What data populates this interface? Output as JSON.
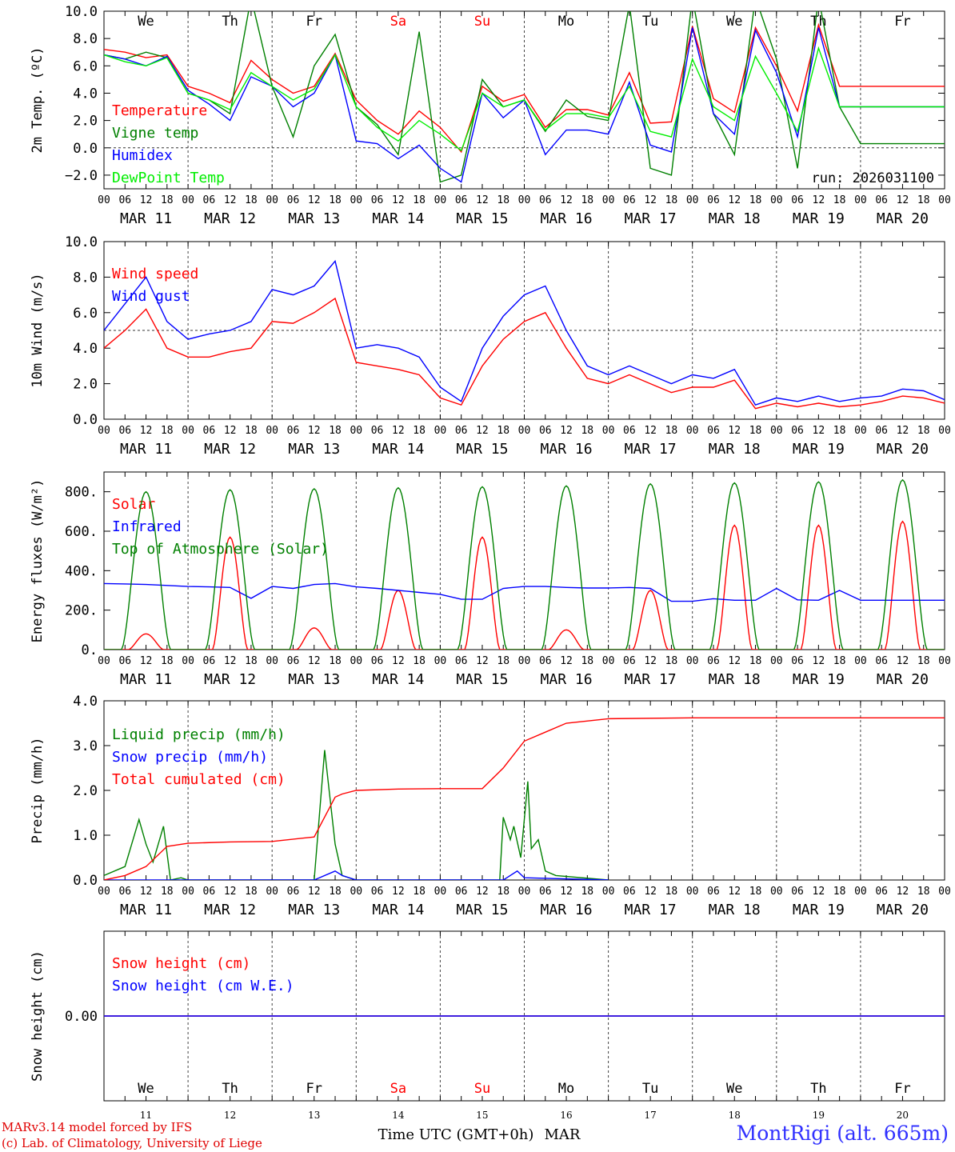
{
  "meta": {
    "run_label": "run: 2026031100",
    "credit_line1": "MARv3.14 model forced by IFS",
    "credit_line2": "(c) Lab. of Climatology, University of Liege",
    "station": "MontRigi (alt. 665m)",
    "time_axis_title": "Time UTC (GMT+0h)",
    "month": "MAR"
  },
  "days": [
    {
      "weekday": "We",
      "date": "MAR 11",
      "num": "11",
      "weekend": false
    },
    {
      "weekday": "Th",
      "date": "MAR 12",
      "num": "12",
      "weekend": false
    },
    {
      "weekday": "Fr",
      "date": "MAR 13",
      "num": "13",
      "weekend": false
    },
    {
      "weekday": "Sa",
      "date": "MAR 14",
      "num": "14",
      "weekend": true
    },
    {
      "weekday": "Su",
      "date": "MAR 15",
      "num": "15",
      "weekend": true
    },
    {
      "weekday": "Mo",
      "date": "MAR 16",
      "num": "16",
      "weekend": false
    },
    {
      "weekday": "Tu",
      "date": "MAR 17",
      "num": "17",
      "weekend": false
    },
    {
      "weekday": "We",
      "date": "MAR 18",
      "num": "18",
      "weekend": false
    },
    {
      "weekday": "Th",
      "date": "MAR 19",
      "num": "19",
      "weekend": false
    },
    {
      "weekday": "Fr",
      "date": "MAR 20",
      "num": "20",
      "weekend": false
    }
  ],
  "hour_ticks": [
    "00",
    "06",
    "12",
    "18"
  ],
  "colors": {
    "red": "#ff0000",
    "green": "#008000",
    "blue": "#0000ff",
    "lightgreen": "#00ee00",
    "weekend": "#ff0000",
    "axis": "#000000"
  },
  "chart_data": [
    {
      "id": "temp",
      "type": "line",
      "ylabel": "2m Temp. (ºC)",
      "ylim": [
        -3,
        10
      ],
      "yticks": [
        -2,
        0,
        2,
        4,
        6,
        8,
        10
      ],
      "ytick_labels": [
        "−2.0",
        "0.0",
        "2.0",
        "4.0",
        "6.0",
        "8.0",
        "10.0"
      ],
      "ref_line": 0,
      "show_weekdays": true,
      "x_unit": "hours since MAR 11 00 UTC",
      "series": [
        {
          "name": "Temperature",
          "color": "red",
          "x": [
            0,
            6,
            12,
            18,
            24,
            30,
            36,
            42,
            48,
            54,
            60,
            66,
            72,
            78,
            84,
            90,
            96,
            102,
            108,
            114,
            120,
            126,
            132,
            138,
            144,
            150,
            156,
            162,
            168,
            174,
            180,
            186,
            192,
            198,
            204,
            210,
            216,
            222,
            228,
            234,
            240
          ],
          "y": [
            7.2,
            7.0,
            6.6,
            6.8,
            4.5,
            4.0,
            3.3,
            6.4,
            5.0,
            4.0,
            4.5,
            6.9,
            3.5,
            2.0,
            1.0,
            2.7,
            1.5,
            -0.3,
            4.5,
            3.4,
            3.9,
            1.5,
            2.8,
            2.8,
            2.4,
            5.5,
            1.8,
            1.9,
            8.9,
            3.6,
            2.6,
            8.8,
            6.0,
            2.7,
            9.0,
            4.5,
            4.5,
            4.5,
            4.5,
            4.5,
            4.5
          ]
        },
        {
          "name": "Vigne temp",
          "color": "green",
          "x": [
            0,
            6,
            12,
            18,
            24,
            30,
            36,
            42,
            48,
            54,
            60,
            66,
            72,
            78,
            84,
            90,
            96,
            102,
            108,
            114,
            120,
            126,
            132,
            138,
            144,
            150,
            156,
            162,
            168,
            174,
            180,
            186,
            192,
            198,
            204,
            210,
            216,
            222,
            228,
            234,
            240
          ],
          "y": [
            6.8,
            6.5,
            7.0,
            6.6,
            4.0,
            3.5,
            2.5,
            11,
            4.5,
            0.8,
            6.0,
            8.3,
            3.0,
            1.7,
            -0.5,
            8.5,
            -2.5,
            -2.0,
            5.0,
            3.0,
            3.5,
            1.2,
            3.5,
            2.3,
            2.0,
            10.5,
            -1.5,
            -2.0,
            11,
            2.5,
            -0.5,
            11,
            6.5,
            -1.5,
            11,
            3.0,
            0.3,
            0.3,
            0.3,
            0.3,
            0.3
          ]
        },
        {
          "name": "Humidex",
          "color": "blue",
          "x": [
            0,
            6,
            12,
            18,
            24,
            30,
            36,
            42,
            48,
            54,
            60,
            66,
            72,
            78,
            84,
            90,
            96,
            102,
            108,
            114,
            120,
            126,
            132,
            138,
            144,
            150,
            156,
            162,
            168,
            174,
            180,
            186,
            192,
            198,
            204,
            210,
            216,
            222,
            228,
            234,
            240
          ],
          "y": [
            6.8,
            6.5,
            6.0,
            6.7,
            4.2,
            3.2,
            2.0,
            5.2,
            4.5,
            3.0,
            4.0,
            6.8,
            0.5,
            0.3,
            -0.8,
            0.2,
            -1.5,
            -2.5,
            4.0,
            2.2,
            3.5,
            -0.5,
            1.3,
            1.3,
            1.0,
            4.8,
            0.2,
            -0.3,
            8.8,
            2.5,
            1.0,
            8.6,
            5.5,
            0.8,
            8.8,
            3.0,
            3.0,
            3.0,
            3.0,
            3.0,
            3.0
          ]
        },
        {
          "name": "DewPoint Temp",
          "color": "lightgreen",
          "x": [
            0,
            6,
            12,
            18,
            24,
            30,
            36,
            42,
            48,
            54,
            60,
            66,
            72,
            78,
            84,
            90,
            96,
            102,
            108,
            114,
            120,
            126,
            132,
            138,
            144,
            150,
            156,
            162,
            168,
            174,
            180,
            186,
            192,
            198,
            204,
            210,
            216,
            222,
            228,
            234,
            240
          ],
          "y": [
            6.8,
            6.3,
            6.0,
            6.6,
            4.0,
            3.5,
            2.8,
            5.5,
            4.5,
            3.5,
            4.3,
            6.8,
            3.0,
            1.5,
            0.5,
            2.0,
            1.0,
            -0.2,
            4.0,
            3.0,
            3.5,
            1.3,
            2.5,
            2.5,
            2.2,
            4.5,
            1.2,
            0.8,
            6.5,
            3.0,
            2.0,
            6.7,
            4.0,
            1.2,
            7.3,
            3.0,
            3.0,
            3.0,
            3.0,
            3.0,
            3.0
          ]
        }
      ]
    },
    {
      "id": "wind",
      "type": "line",
      "ylabel": "10m Wind (m/s)",
      "ylim": [
        0,
        10
      ],
      "yticks": [
        0,
        2,
        4,
        6,
        8,
        10
      ],
      "ytick_labels": [
        "0.0",
        "2.0",
        "4.0",
        "6.0",
        "8.0",
        "10.0"
      ],
      "ref_line": 5,
      "show_weekdays": false,
      "series": [
        {
          "name": "Wind speed",
          "color": "red",
          "x": [
            0,
            6,
            12,
            18,
            24,
            30,
            36,
            42,
            48,
            54,
            60,
            66,
            72,
            78,
            84,
            90,
            96,
            102,
            108,
            114,
            120,
            126,
            132,
            138,
            144,
            150,
            156,
            162,
            168,
            174,
            180,
            186,
            192,
            198,
            204,
            210,
            216,
            222,
            228,
            234,
            240
          ],
          "y": [
            4.0,
            5.0,
            6.2,
            4.0,
            3.5,
            3.5,
            3.8,
            4.0,
            5.5,
            5.4,
            6.0,
            6.8,
            3.2,
            3.0,
            2.8,
            2.5,
            1.2,
            0.8,
            3.0,
            4.5,
            5.5,
            6.0,
            4.0,
            2.3,
            2.0,
            2.5,
            2.0,
            1.5,
            1.8,
            1.8,
            2.2,
            0.6,
            0.9,
            0.7,
            0.9,
            0.7,
            0.8,
            1.0,
            1.3,
            1.2,
            0.9
          ]
        },
        {
          "name": "Wind gust",
          "color": "blue",
          "x": [
            0,
            6,
            12,
            18,
            24,
            30,
            36,
            42,
            48,
            54,
            60,
            66,
            72,
            78,
            84,
            90,
            96,
            102,
            108,
            114,
            120,
            126,
            132,
            138,
            144,
            150,
            156,
            162,
            168,
            174,
            180,
            186,
            192,
            198,
            204,
            210,
            216,
            222,
            228,
            234,
            240
          ],
          "y": [
            5.0,
            6.5,
            8.0,
            5.5,
            4.5,
            4.8,
            5.0,
            5.5,
            7.3,
            7.0,
            7.5,
            8.9,
            4.0,
            4.2,
            4.0,
            3.5,
            1.8,
            1.0,
            4.0,
            5.8,
            7.0,
            7.5,
            5.0,
            3.0,
            2.5,
            3.0,
            2.5,
            2.0,
            2.5,
            2.3,
            2.8,
            0.8,
            1.2,
            1.0,
            1.3,
            1.0,
            1.2,
            1.3,
            1.7,
            1.6,
            1.1
          ]
        }
      ]
    },
    {
      "id": "energy",
      "type": "line",
      "ylabel": "Energy fluxes (W/m²)",
      "ylim": [
        0,
        900
      ],
      "yticks": [
        0,
        200,
        400,
        600,
        800
      ],
      "ytick_labels": [
        "0.",
        "200.",
        "400.",
        "600.",
        "800."
      ],
      "show_weekdays": false,
      "series": [
        {
          "name": "Solar",
          "color": "red",
          "peaks": [
            80,
            570,
            110,
            300,
            570,
            100,
            300,
            630,
            630,
            650
          ]
        },
        {
          "name": "Infrared",
          "color": "blue",
          "x": [
            0,
            6,
            12,
            18,
            24,
            30,
            36,
            42,
            48,
            54,
            60,
            66,
            72,
            78,
            84,
            90,
            96,
            102,
            108,
            114,
            120,
            126,
            132,
            138,
            144,
            150,
            156,
            162,
            168,
            174,
            180,
            186,
            192,
            198,
            204,
            210,
            216,
            222,
            228,
            234,
            240
          ],
          "y": [
            335,
            333,
            330,
            325,
            320,
            318,
            315,
            260,
            320,
            310,
            330,
            335,
            318,
            310,
            300,
            290,
            280,
            255,
            255,
            310,
            320,
            320,
            315,
            312,
            312,
            315,
            310,
            245,
            245,
            258,
            250,
            250,
            310,
            252,
            250,
            300,
            250,
            250,
            250,
            250,
            250
          ]
        },
        {
          "name": "Top of Atmosphere (Solar)",
          "color": "green",
          "peaks": [
            800,
            810,
            815,
            820,
            825,
            830,
            840,
            845,
            850,
            860
          ]
        }
      ]
    },
    {
      "id": "precip",
      "type": "line",
      "ylabel": "Precip (mm/h)",
      "ylim": [
        0,
        4
      ],
      "yticks": [
        0,
        1,
        2,
        3,
        4
      ],
      "ytick_labels": [
        "0.0",
        "1.0",
        "2.0",
        "3.0",
        "4.0"
      ],
      "show_weekdays": false,
      "series": [
        {
          "name": "Liquid precip (mm/h)",
          "color": "green",
          "x": [
            0,
            6,
            10,
            12,
            14,
            17,
            19,
            22,
            24,
            60,
            63,
            66,
            68,
            72,
            84,
            113,
            114,
            116,
            117,
            119,
            121,
            122,
            124,
            126,
            129,
            144
          ],
          "y": [
            0.1,
            0.3,
            1.35,
            0.8,
            0.4,
            1.2,
            0.0,
            0.05,
            0.0,
            0.0,
            2.9,
            0.8,
            0.1,
            0.0,
            0.0,
            0.0,
            1.4,
            0.9,
            1.2,
            0.5,
            2.2,
            0.7,
            0.9,
            0.2,
            0.1,
            0.0
          ]
        },
        {
          "name": "Snow precip (mm/h)",
          "color": "blue",
          "x": [
            0,
            60,
            66,
            68,
            72,
            114,
            118,
            120,
            144
          ],
          "y": [
            0,
            0,
            0.2,
            0.1,
            0,
            0,
            0.2,
            0.05,
            0
          ]
        },
        {
          "name": "Total cumulated (cm)",
          "color": "red",
          "x": [
            0,
            6,
            12,
            18,
            24,
            36,
            48,
            60,
            66,
            68,
            72,
            84,
            96,
            108,
            114,
            120,
            126,
            132,
            144,
            168,
            240
          ],
          "y": [
            0.0,
            0.1,
            0.3,
            0.75,
            0.82,
            0.85,
            0.86,
            0.96,
            1.85,
            1.92,
            2.0,
            2.03,
            2.04,
            2.04,
            2.5,
            3.1,
            3.3,
            3.5,
            3.6,
            3.62,
            3.62
          ]
        }
      ]
    },
    {
      "id": "snow",
      "type": "line",
      "ylabel": "Snow height (cm)",
      "ylim": [
        -1,
        1
      ],
      "yticks": [
        0
      ],
      "ytick_labels": [
        "0.00"
      ],
      "show_weekdays": true,
      "series": [
        {
          "name": "Snow height (cm)",
          "color": "red",
          "x": [
            0,
            240
          ],
          "y": [
            0,
            0
          ]
        },
        {
          "name": "Snow height (cm W.E.)",
          "color": "blue",
          "x": [
            0,
            240
          ],
          "y": [
            0,
            0
          ]
        }
      ]
    }
  ]
}
